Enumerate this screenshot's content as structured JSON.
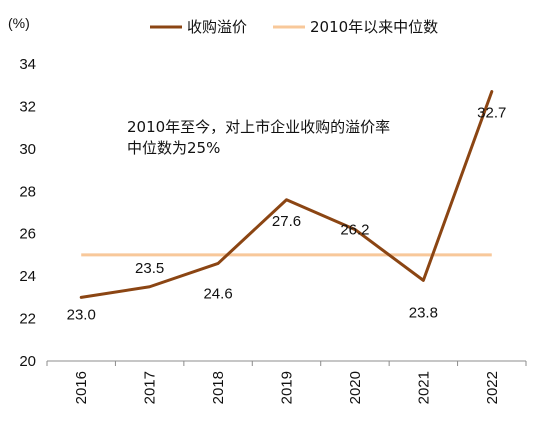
{
  "chart_data": {
    "type": "line",
    "unit_label": "(%)",
    "categories": [
      "2016",
      "2017",
      "2018",
      "2019",
      "2020",
      "2021",
      "2022"
    ],
    "series": [
      {
        "name": "收购溢价",
        "color": "#8B4513",
        "values": [
          23.0,
          23.5,
          24.6,
          27.6,
          26.2,
          23.8,
          32.7
        ],
        "data_labels": [
          "23.0",
          "23.5",
          "24.6",
          "27.6",
          "26.2",
          "23.8",
          "32.7"
        ]
      },
      {
        "name": "2010年以来中位数",
        "color": "#F8C89A",
        "values": [
          25,
          25,
          25,
          25,
          25,
          25,
          25
        ]
      }
    ],
    "ylim": [
      20,
      34
    ],
    "yticks": [
      "20",
      "22",
      "24",
      "26",
      "28",
      "30",
      "32",
      "34"
    ],
    "legend_position": "top",
    "grid": false,
    "annotation": {
      "line1": "2010年至今，对上市企业收购的溢价率",
      "line2": "中位数为25%"
    }
  }
}
